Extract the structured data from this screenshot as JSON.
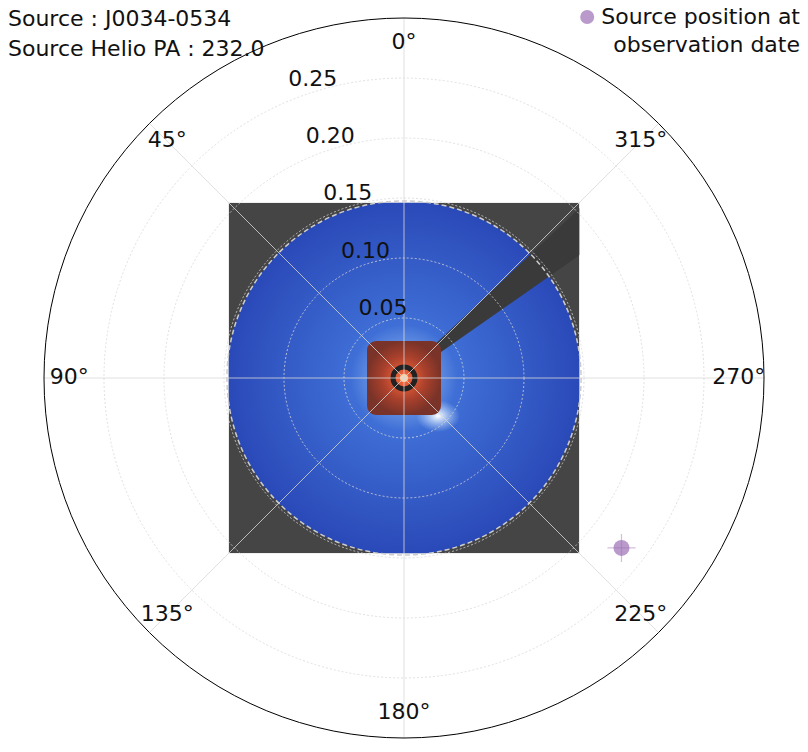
{
  "chart_data": {
    "type": "polar_scatter",
    "annotations": [
      "Source : J0034-0534",
      "Source Helio PA : 232.0"
    ],
    "rlim": [
      0,
      0.3
    ],
    "rticks": [
      0.05,
      {
        "value": 0.1,
        "label": "0.10"
      },
      0.15,
      {
        "value": 0.2,
        "label": "0.20"
      },
      0.25
    ],
    "thetaticks": [
      {
        "value": 0,
        "label": "0°"
      },
      {
        "value": 45,
        "label": "45°"
      },
      {
        "value": 90,
        "label": "90°"
      },
      {
        "value": 135,
        "label": "135°"
      },
      {
        "value": 180,
        "label": "180°"
      },
      {
        "value": 225,
        "label": "225°"
      },
      {
        "value": 270,
        "label": "270°"
      },
      {
        "value": 315,
        "label": "315°"
      }
    ],
    "grid": true,
    "legend": "upper right",
    "series": [
      {
        "name": "Source position at observation date",
        "color": "#9b6fb5",
        "marker": "circle",
        "theta": [
          232.0
        ],
        "r": [
          0.23
        ]
      }
    ]
  }
}
